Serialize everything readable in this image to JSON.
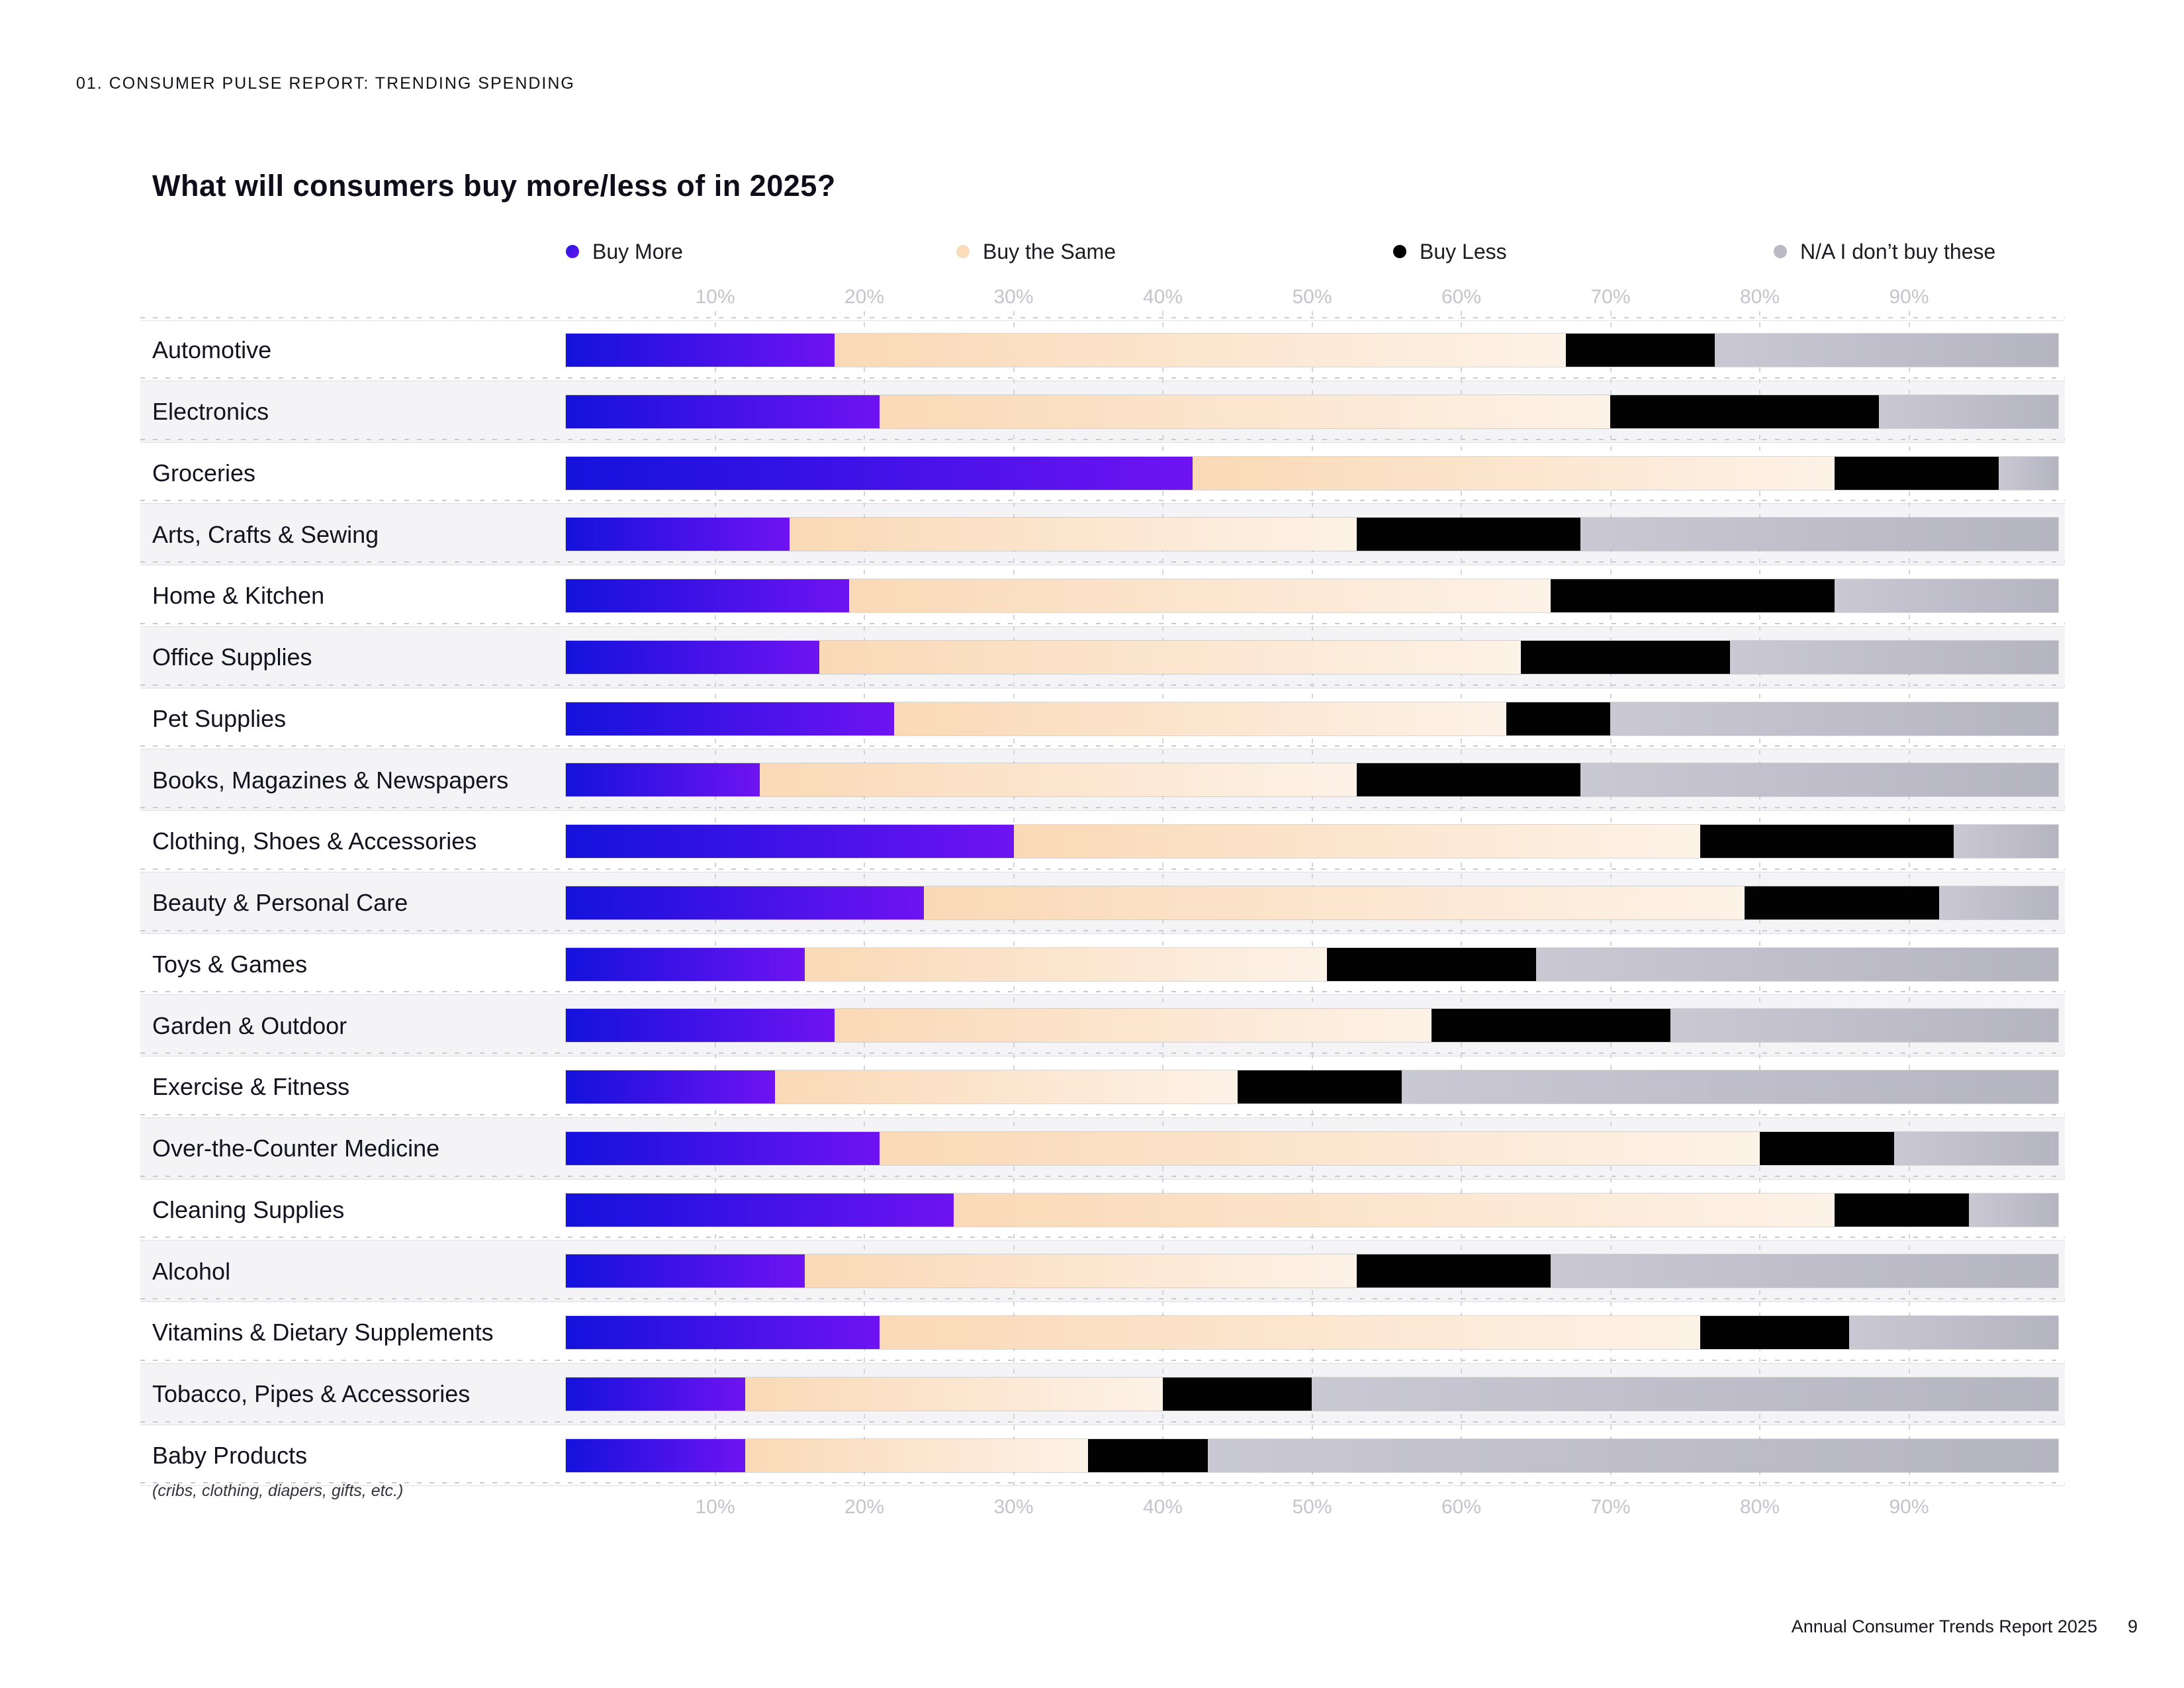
{
  "page": {
    "kicker": "01. CONSUMER PULSE REPORT: TRENDING SPENDING",
    "title": "What will consumers buy more/less of in 2025?",
    "footer": {
      "report_name": "Annual Consumer Trends Report 2025",
      "page_number": "9"
    }
  },
  "legend": {
    "items": [
      {
        "label": "Buy More",
        "color": "#3d1ce2"
      },
      {
        "label": "Buy the Same",
        "color": "#fadcbc"
      },
      {
        "label": "Buy Less",
        "color": "#020202"
      },
      {
        "label": "N/A I don’t buy these",
        "color": "#b9b8c4"
      }
    ]
  },
  "axis": {
    "tick_labels": [
      "10%",
      "20%",
      "30%",
      "40%",
      "50%",
      "60%",
      "70%",
      "80%",
      "90%"
    ],
    "shown_top": true,
    "shown_bottom": true
  },
  "chart_data": {
    "type": "bar",
    "stacked": true,
    "orientation": "horizontal",
    "title": "What will consumers buy more/less of in 2025?",
    "xlim": [
      0,
      100
    ],
    "tick_interval": 10,
    "grid": "dashed-vertical",
    "legend_position": "top",
    "categories": [
      "Automotive",
      "Electronics",
      "Groceries",
      "Arts, Crafts & Sewing",
      "Home & Kitchen",
      "Office Supplies",
      "Pet Supplies",
      "Books, Magazines & Newspapers",
      "Clothing, Shoes & Accessories",
      "Beauty & Personal Care",
      "Toys & Games",
      "Garden & Outdoor",
      "Exercise & Fitness",
      "Over-the-Counter Medicine",
      "Cleaning Supplies",
      "Alcohol",
      "Vitamins & Dietary Supplements",
      "Tobacco, Pipes & Accessories",
      "Baby Products"
    ],
    "category_note": {
      "category": "Baby Products",
      "note": "(cribs, clothing, diapers, gifts, etc.)"
    },
    "series": [
      {
        "name": "Buy More",
        "values": [
          18,
          21,
          42,
          15,
          19,
          17,
          22,
          13,
          30,
          24,
          16,
          18,
          14,
          21,
          26,
          16,
          21,
          12,
          12
        ]
      },
      {
        "name": "Buy the Same",
        "values": [
          49,
          49,
          43,
          38,
          47,
          47,
          41,
          40,
          46,
          55,
          35,
          40,
          31,
          59,
          59,
          37,
          55,
          28,
          23
        ]
      },
      {
        "name": "Buy Less",
        "values": [
          10,
          18,
          11,
          15,
          19,
          14,
          7,
          15,
          17,
          13,
          14,
          16,
          11,
          9,
          9,
          13,
          10,
          10,
          8
        ]
      },
      {
        "name": "N/A I don’t buy these",
        "values": [
          23,
          12,
          4,
          32,
          15,
          22,
          30,
          32,
          7,
          8,
          35,
          26,
          44,
          11,
          6,
          34,
          14,
          50,
          57
        ]
      }
    ]
  },
  "colors": {
    "buy_more_gradient": [
      "#1412dc",
      "#6f13f2"
    ],
    "buy_same_gradient": [
      "#fad9b6",
      "#fdf2e7"
    ],
    "buy_less": "#020202",
    "na_gradient": [
      "#c9c8d3",
      "#b5b4c1"
    ],
    "row_stripe": "#f4f4f6",
    "gridline": "#d3d3db",
    "axis_text": "#c4c4cd",
    "label_text": "#13131f"
  }
}
